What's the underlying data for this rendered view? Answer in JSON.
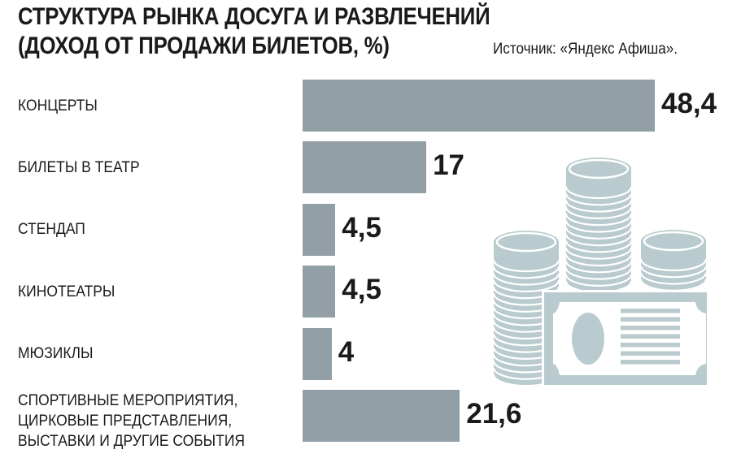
{
  "chart_data": {
    "type": "bar",
    "orientation": "horizontal",
    "title": "СТРУКТУРА РЫНКА ДОСУГА И РАЗВЛЕЧЕНИЙ",
    "subtitle": "(ДОХОД ОТ ПРОДАЖИ БИЛЕТОВ, %)",
    "source": "Источник: «Яндекс Афиша».",
    "categories": [
      "КОНЦЕРТЫ",
      "БИЛЕТЫ В ТЕАТР",
      "СТЕНДАП",
      "КИНОТЕАТРЫ",
      "МЮЗИКЛЫ",
      "СПОРТИВНЫЕ МЕРОПРИЯТИЯ,\nЦИРКОВЫЕ ПРЕДСТАВЛЕНИЯ,\nВЫСТАВКИ И ДРУГИЕ СОБЫТИЯ"
    ],
    "values": [
      48.4,
      17,
      4.5,
      4.5,
      4,
      21.6
    ],
    "value_labels": [
      "48,4",
      "17",
      "4,5",
      "4,5",
      "4",
      "21,6"
    ],
    "xlim": [
      0,
      48.4
    ],
    "grid": false,
    "bar_color": "#929fa6",
    "illustration": "coins-and-banknote",
    "illustration_color": "#b9cbce"
  }
}
